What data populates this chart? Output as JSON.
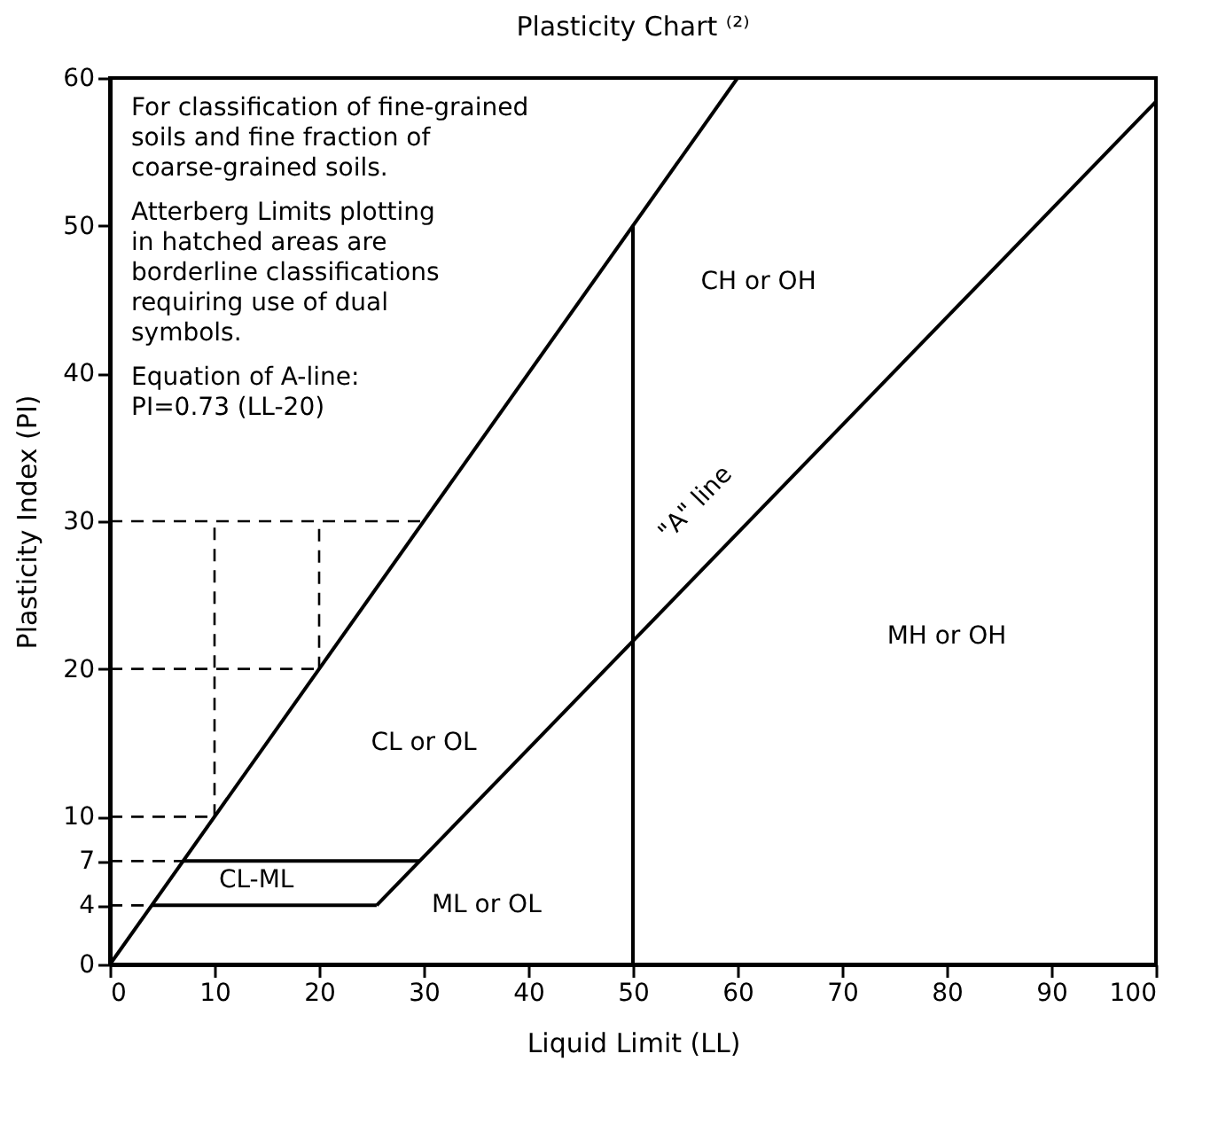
{
  "chart_data": {
    "type": "line",
    "title": "Plasticity Chart ⁽²⁾",
    "xlabel": "Liquid Limit (LL)",
    "ylabel": "Plasticity Index (PI)",
    "xlim": [
      0,
      100
    ],
    "ylim": [
      0,
      60
    ],
    "xticks": [
      0,
      10,
      20,
      30,
      40,
      50,
      60,
      70,
      80,
      90,
      100
    ],
    "yticks": [
      0,
      4,
      7,
      10,
      20,
      30,
      40,
      50,
      60
    ],
    "series": [
      {
        "color": "#000000",
        "x": [
          0,
          60
        ],
        "values": [
          0,
          60
        ],
        "line_style": "solid"
      },
      {
        "color": "#000000",
        "x": [
          25.5,
          100
        ],
        "values": [
          4,
          58.4
        ],
        "line_style": "solid"
      },
      {
        "color": "#000000",
        "x": [
          4,
          25.5
        ],
        "values": [
          4,
          4
        ],
        "line_style": "solid"
      },
      {
        "color": "#000000",
        "x": [
          7,
          29.6
        ],
        "values": [
          7,
          7
        ],
        "line_style": "solid"
      },
      {
        "color": "#000000",
        "x": [
          50,
          50
        ],
        "values": [
          0,
          50
        ],
        "line_style": "solid"
      },
      {
        "color": "#000000",
        "x": [
          0,
          30
        ],
        "values": [
          30,
          30
        ],
        "line_style": "dashed"
      },
      {
        "color": "#000000",
        "x": [
          0,
          20
        ],
        "values": [
          20,
          20
        ],
        "line_style": "dashed"
      },
      {
        "color": "#000000",
        "x": [
          0,
          10
        ],
        "values": [
          10,
          10
        ],
        "line_style": "dashed"
      },
      {
        "color": "#000000",
        "x": [
          0,
          7
        ],
        "values": [
          7,
          7
        ],
        "line_style": "dashed"
      },
      {
        "color": "#000000",
        "x": [
          0,
          4
        ],
        "values": [
          4,
          4
        ],
        "line_style": "dashed"
      },
      {
        "color": "#000000",
        "x": [
          10,
          10
        ],
        "values": [
          10,
          30
        ],
        "line_style": "dashed"
      },
      {
        "color": "#000000",
        "x": [
          20,
          20
        ],
        "values": [
          20,
          30
        ],
        "line_style": "dashed"
      }
    ],
    "annotations": [
      "For classification of fine-grained",
      "soils and fine fraction of",
      "coarse-grained soils.",
      "Atterberg Limits plotting",
      "in hatched areas are",
      "borderline classifications",
      "requiring use of dual",
      "symbols.",
      "Equation of A-line:",
      "PI=0.73 (LL-20)",
      "CH or OH",
      "MH or OH",
      "CL or OL",
      "CL-ML",
      "ML or OL",
      "\"A\" line"
    ]
  }
}
